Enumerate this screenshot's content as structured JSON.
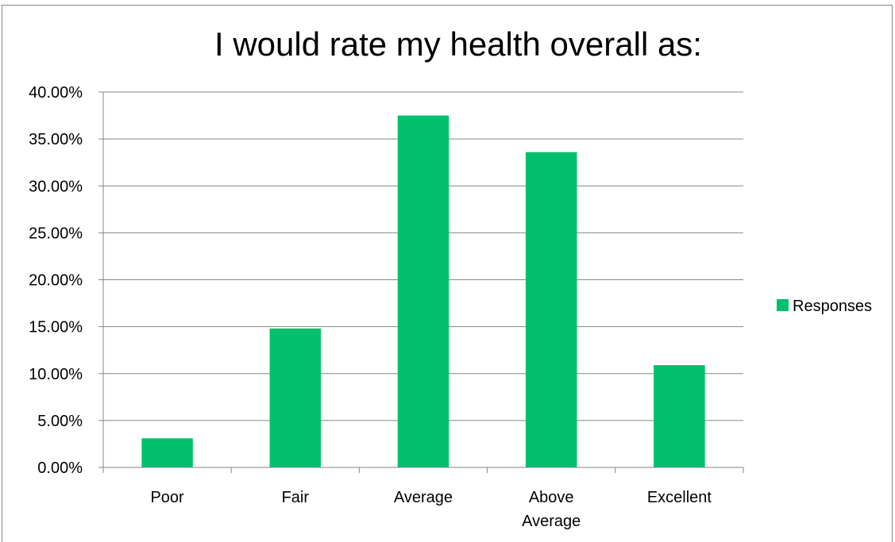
{
  "chart_data": {
    "type": "bar",
    "title": "I would rate my health overall as:",
    "categories": [
      "Poor",
      "Fair",
      "Average",
      "Above Average",
      "Excellent"
    ],
    "category_lines": [
      [
        "Poor"
      ],
      [
        "Fair"
      ],
      [
        "Average"
      ],
      [
        "Above",
        "Average"
      ],
      [
        "Excellent"
      ]
    ],
    "series": [
      {
        "name": "Responses",
        "values": [
          3.1,
          14.8,
          37.5,
          33.6,
          10.9
        ],
        "color": "#00c06b"
      }
    ],
    "ylim": [
      0,
      40
    ],
    "y_ticks": [
      0,
      5,
      10,
      15,
      20,
      25,
      30,
      35,
      40
    ],
    "y_tick_labels": [
      "0.00%",
      "5.00%",
      "10.00%",
      "15.00%",
      "20.00%",
      "25.00%",
      "30.00%",
      "35.00%",
      "40.00%"
    ],
    "y_unit": "percent",
    "grid": true,
    "legend_position": "right"
  }
}
